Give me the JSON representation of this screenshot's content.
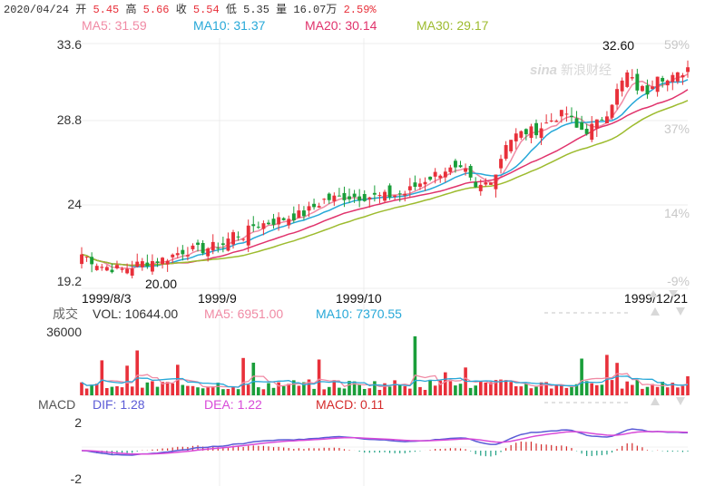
{
  "info_bar": {
    "date": "2020/04/24",
    "open_label": "开",
    "open": "5.45",
    "high_label": "高",
    "high": "5.66",
    "close_label": "收",
    "close": "5.54",
    "low_label": "低",
    "low": "5.35",
    "volume_label": "量",
    "volume": "16.07万",
    "change": "2.59%"
  },
  "ma_legend": [
    {
      "text": "MA5: 31.59",
      "color": "#f08aa4"
    },
    {
      "text": "MA10: 31.37",
      "color": "#27a8d8"
    },
    {
      "text": "MA20: 30.14",
      "color": "#e0336c"
    },
    {
      "text": "MA30: 29.17",
      "color": "#9dbb2e"
    }
  ],
  "watermark": "新浪财经",
  "price_axis": {
    "ticks": [
      "33.6",
      "28.8",
      "24",
      "19.2"
    ]
  },
  "pct_axis": {
    "ticks": [
      "59%",
      "37%",
      "14%",
      "-9%"
    ]
  },
  "annotations": {
    "high": "32.60",
    "low": "20.00"
  },
  "date_axis": [
    "1999/8/3",
    "1999/9",
    "1999/10",
    "1999/12/21"
  ],
  "volume_panel": {
    "title": "成交",
    "vol_label": "VOL: 10644.00",
    "ma5_label": "MA5: 6951.00",
    "ma10_label": "MA10: 7370.55",
    "ytick": "36000"
  },
  "macd_panel": {
    "title": "MACD",
    "dif_label": "DIF: 1.28",
    "dea_label": "DEA: 1.22",
    "macd_label": "MACD: 0.11",
    "yticks": [
      "2",
      "-2"
    ]
  },
  "colors": {
    "up": "#e8303a",
    "down": "#1a9e3a",
    "ma5": "#f08aa4",
    "ma10": "#27a8d8",
    "ma20": "#e0336c",
    "ma30": "#9dbb2e",
    "dif": "#5b5bd6",
    "dea": "#d84ad8"
  },
  "chart_data": {
    "type": "candlestick",
    "x_range": [
      "1999/8/3",
      "1999/12/21"
    ],
    "ylim": [
      19.2,
      33.6
    ],
    "max_price": 32.6,
    "min_price": 20.0,
    "anchors_close": [
      [
        0,
        21.2
      ],
      [
        4,
        20.5
      ],
      [
        8,
        20.3
      ],
      [
        12,
        20.7
      ],
      [
        16,
        20.9
      ],
      [
        20,
        21.4
      ],
      [
        24,
        21.5
      ],
      [
        28,
        21.8
      ],
      [
        30,
        22.4
      ],
      [
        32,
        22.3
      ],
      [
        34,
        22.9
      ],
      [
        36,
        23.0
      ],
      [
        40,
        23.3
      ],
      [
        44,
        23.6
      ],
      [
        48,
        24.4
      ],
      [
        52,
        24.6
      ],
      [
        56,
        24.6
      ],
      [
        60,
        24.6
      ],
      [
        64,
        24.8
      ],
      [
        66,
        25.2
      ],
      [
        68,
        25.6
      ],
      [
        70,
        25.9
      ],
      [
        72,
        26.2
      ],
      [
        76,
        26.0
      ],
      [
        78,
        25.0
      ],
      [
        80,
        25.4
      ],
      [
        82,
        26.0
      ],
      [
        84,
        27.8
      ],
      [
        86,
        28.2
      ],
      [
        88,
        28.4
      ],
      [
        90,
        28.5
      ],
      [
        92,
        28.9
      ],
      [
        94,
        29.3
      ],
      [
        96,
        29.5
      ],
      [
        98,
        28.6
      ],
      [
        100,
        28.5
      ],
      [
        102,
        28.9
      ],
      [
        104,
        29.6
      ],
      [
        106,
        30.8
      ],
      [
        108,
        31.8
      ],
      [
        110,
        31.0
      ],
      [
        112,
        30.8
      ],
      [
        114,
        31.9
      ],
      [
        116,
        31.4
      ],
      [
        118,
        31.7
      ],
      [
        120,
        32.2
      ]
    ],
    "volume_axis_max": 36000,
    "last_volume": 10644,
    "dif_last": 1.28,
    "dea_last": 1.22,
    "macd_last": 0.11,
    "macd_ylim": [
      -2,
      2
    ]
  }
}
